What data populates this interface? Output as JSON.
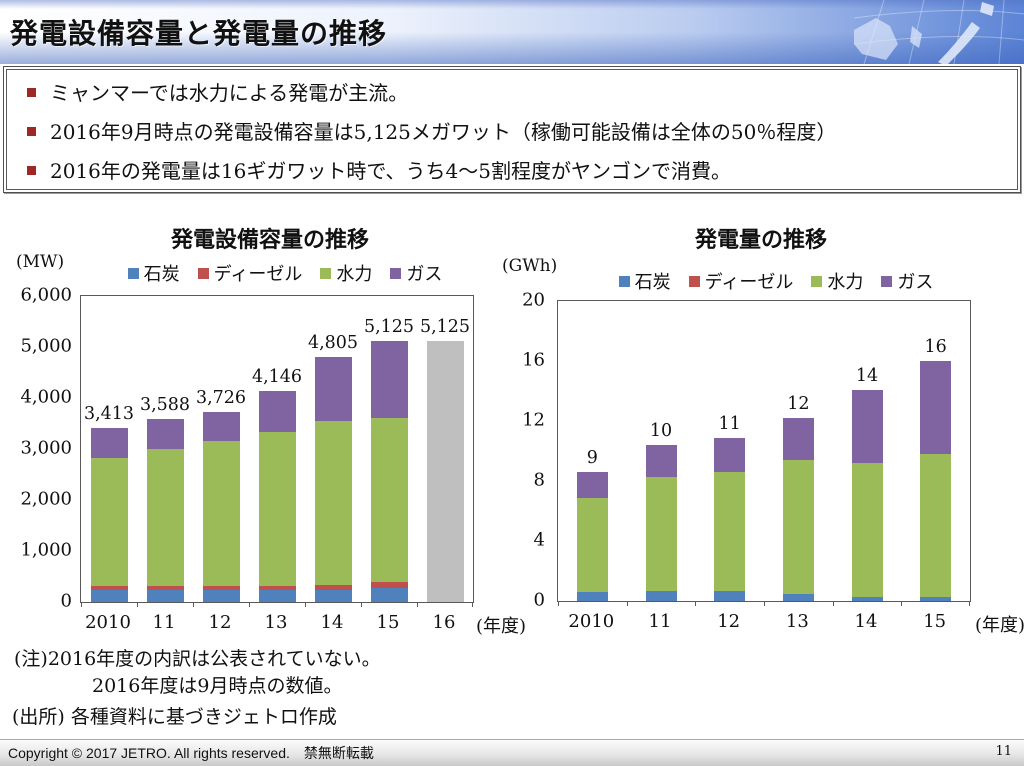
{
  "slide": {
    "title": "発電設備容量と発電量の推移",
    "page_number": "11"
  },
  "bullets": [
    "ミャンマーでは水力による発電が主流。",
    "2016年9月時点の発電設備容量は5,125メガワット（稼働可能設備は全体の50％程度）",
    "2016年の発電量は16ギガワット時で、うち4～5割程度がヤンゴンで消費。"
  ],
  "notes": {
    "note1": "(注)2016年度の内訳は公表されていない。",
    "note2": "2016年度は9月時点の数値。",
    "source": "(出所) 各種資料に基づきジェトロ作成"
  },
  "footer": {
    "copyright": "Copyright © 2017 JETRO. All rights reserved.",
    "no_reproduction": "禁無断転載"
  },
  "colors": {
    "coal": "#4f81bd",
    "diesel": "#c0504d",
    "hydro": "#9bbb59",
    "gas": "#8064a2",
    "undisclosed_gray": "#bfbfbf",
    "bullet_red": "#9e2727"
  },
  "chart_data": [
    {
      "type": "bar",
      "stacked": true,
      "title": "発電設備容量の推移",
      "unit": "(MW)",
      "xlabel_suffix": "(年度)",
      "ylim": [
        0,
        6000
      ],
      "yticks": [
        "6,000",
        "5,000",
        "4,000",
        "3,000",
        "2,000",
        "1,000",
        "0"
      ],
      "categories": [
        "2010",
        "11",
        "12",
        "13",
        "14",
        "15",
        "16"
      ],
      "series": [
        {
          "name": "石炭",
          "color": "#4f81bd",
          "values": [
            230,
            230,
            230,
            230,
            230,
            270,
            null
          ]
        },
        {
          "name": "ディーゼル",
          "color": "#c0504d",
          "values": [
            90,
            90,
            90,
            90,
            100,
            130,
            null
          ]
        },
        {
          "name": "水力",
          "color": "#9bbb59",
          "values": [
            2500,
            2680,
            2830,
            3020,
            3210,
            3210,
            null
          ]
        },
        {
          "name": "ガス",
          "color": "#8064a2",
          "values": [
            593,
            588,
            576,
            806,
            1265,
            1515,
            null
          ]
        },
        {
          "name": "内訳非公表",
          "color": "#bfbfbf",
          "show_in_legend": false,
          "values": [
            null,
            null,
            null,
            null,
            null,
            null,
            5125
          ]
        }
      ],
      "totals": [
        3413,
        3588,
        3726,
        4146,
        4805,
        5125,
        5125
      ],
      "total_labels": [
        "3,413",
        "3,588",
        "3,726",
        "4,146",
        "4,805",
        "5,125",
        "5,125"
      ],
      "grid": false,
      "legend_position": "top"
    },
    {
      "type": "bar",
      "stacked": true,
      "title": "発電量の推移",
      "unit": "(GWh)",
      "xlabel_suffix": "(年度)",
      "ylim": [
        0,
        20
      ],
      "yticks": [
        "20",
        "16",
        "12",
        "8",
        "4",
        "0"
      ],
      "categories": [
        "2010",
        "11",
        "12",
        "13",
        "14",
        "15"
      ],
      "series": [
        {
          "name": "石炭",
          "color": "#4f81bd",
          "values": [
            0.6,
            0.7,
            0.7,
            0.5,
            0.3,
            0.3
          ]
        },
        {
          "name": "ディーゼル",
          "color": "#c0504d",
          "values": [
            0,
            0,
            0,
            0,
            0,
            0
          ]
        },
        {
          "name": "水力",
          "color": "#9bbb59",
          "values": [
            6.3,
            7.6,
            7.9,
            8.9,
            8.9,
            9.5
          ]
        },
        {
          "name": "ガス",
          "color": "#8064a2",
          "values": [
            1.7,
            2.1,
            2.3,
            2.8,
            4.9,
            6.2
          ]
        }
      ],
      "totals": [
        8.6,
        10.4,
        10.9,
        12.2,
        14.1,
        16.0
      ],
      "total_labels": [
        "9",
        "10",
        "11",
        "12",
        "14",
        "16"
      ],
      "grid": false,
      "legend_position": "top"
    }
  ]
}
